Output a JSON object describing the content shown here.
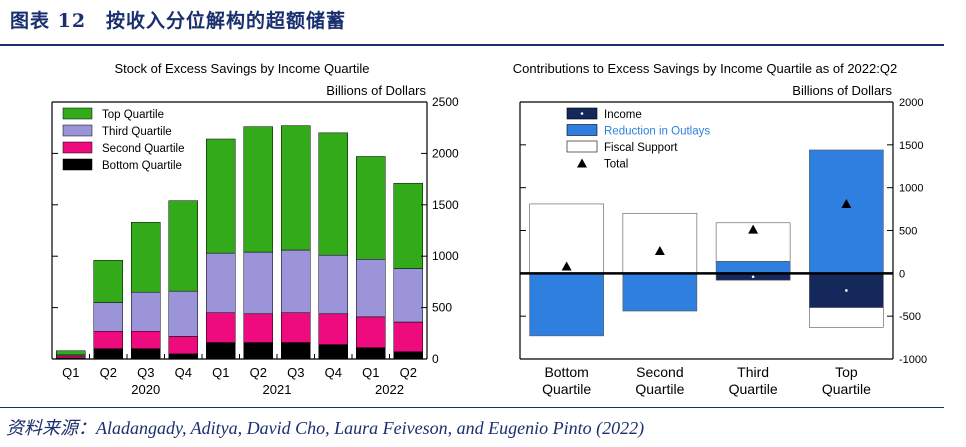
{
  "figure": {
    "title": "图表 12　按收入分位解构的超额储蓄",
    "source": "资料来源：Aladangady, Aditya, David Cho, Laura Feiveson, and Eugenio Pinto (2022)"
  },
  "colors": {
    "top_quartile": "#33aa1a",
    "third_quartile": "#9b94d8",
    "second_quartile": "#ee0b7e",
    "bottom_quartile": "#000000",
    "income": "#15285c",
    "reduction_in_outlays": "#2f7fe0",
    "fiscal_support": "#ffffff",
    "total": "#000000"
  },
  "chart_data": [
    {
      "type": "bar",
      "stacked": true,
      "title": "Stock of Excess Savings by Income Quartile",
      "ylabel": "Billions of Dollars",
      "ylim": [
        0,
        2500
      ],
      "yticks": [
        0,
        500,
        1000,
        1500,
        2000,
        2500
      ],
      "categories": [
        "Q1",
        "Q2",
        "Q3",
        "Q4",
        "Q1",
        "Q2",
        "Q3",
        "Q4",
        "Q1",
        "Q2"
      ],
      "year_labels": [
        {
          "label": "2020",
          "from": 1,
          "to": 3
        },
        {
          "label": "2021",
          "from": 4,
          "to": 7
        },
        {
          "label": "2022",
          "from": 8,
          "to": 9
        }
      ],
      "legend": [
        "Top Quartile",
        "Third Quartile",
        "Second Quartile",
        "Bottom Quartile"
      ],
      "series": [
        {
          "name": "Bottom Quartile",
          "values": [
            10,
            100,
            100,
            50,
            160,
            160,
            160,
            140,
            110,
            70
          ]
        },
        {
          "name": "Second Quartile",
          "values": [
            20,
            170,
            170,
            170,
            290,
            280,
            290,
            300,
            300,
            290
          ]
        },
        {
          "name": "Third Quartile",
          "values": [
            10,
            280,
            380,
            440,
            580,
            600,
            610,
            570,
            560,
            520
          ]
        },
        {
          "name": "Top Quartile",
          "values": [
            40,
            410,
            680,
            880,
            1110,
            1220,
            1210,
            1190,
            1000,
            830
          ]
        }
      ],
      "totals": [
        80,
        960,
        1330,
        1540,
        2140,
        2260,
        2270,
        2200,
        1970,
        1710
      ]
    },
    {
      "type": "bar",
      "stacked": true,
      "title": "Contributions to Excess Savings by Income Quartile as of 2022:Q2",
      "ylabel": "Billions of Dollars",
      "ylim": [
        -1000,
        2000
      ],
      "yticks": [
        -1000,
        -500,
        0,
        500,
        1000,
        1500,
        2000
      ],
      "categories": [
        "Bottom Quartile",
        "Second Quartile",
        "Third Quartile",
        "Top Quartile"
      ],
      "legend": [
        "Income",
        "Reduction in Outlays",
        "Fiscal Support",
        "Total"
      ],
      "series": [
        {
          "name": "Income",
          "values": [
            0,
            0,
            -80,
            -400
          ]
        },
        {
          "name": "Reduction in Outlays",
          "values": [
            -730,
            -440,
            140,
            1440
          ]
        },
        {
          "name": "Fiscal Support",
          "values": [
            810,
            700,
            450,
            -230
          ]
        },
        {
          "name": "Total",
          "values": [
            80,
            260,
            510,
            810
          ]
        }
      ]
    }
  ]
}
